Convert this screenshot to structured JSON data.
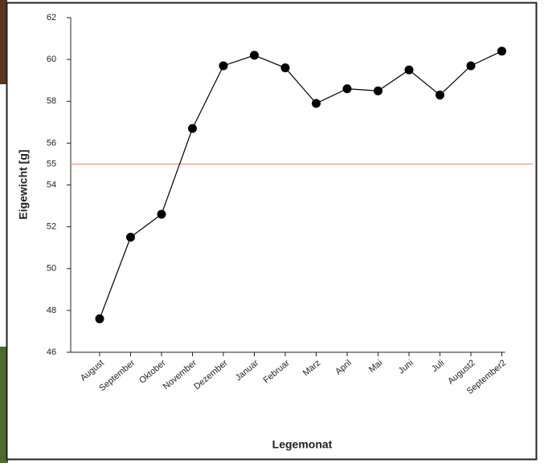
{
  "chart_data": {
    "type": "line",
    "x_label": "Legemonat",
    "y_label": "Eigewicht [g]",
    "categories": [
      "August",
      "September",
      "Oktober",
      "November",
      "Dezember",
      "Januar",
      "Februar",
      "Marz",
      "April",
      "Mai",
      "Juni",
      "Juli",
      "August2",
      "September2"
    ],
    "values": [
      47.6,
      51.5,
      52.6,
      56.7,
      59.7,
      60.2,
      59.6,
      57.9,
      58.6,
      58.5,
      59.5,
      58.3,
      59.7,
      60.4
    ],
    "color": "#000000",
    "ylim": [
      46,
      62
    ],
    "yticks": [
      46,
      48,
      50,
      52,
      54,
      56,
      58,
      60,
      62
    ],
    "reference_line": {
      "value": 55,
      "label": "55",
      "color": "#f08a70"
    },
    "grid": false
  }
}
